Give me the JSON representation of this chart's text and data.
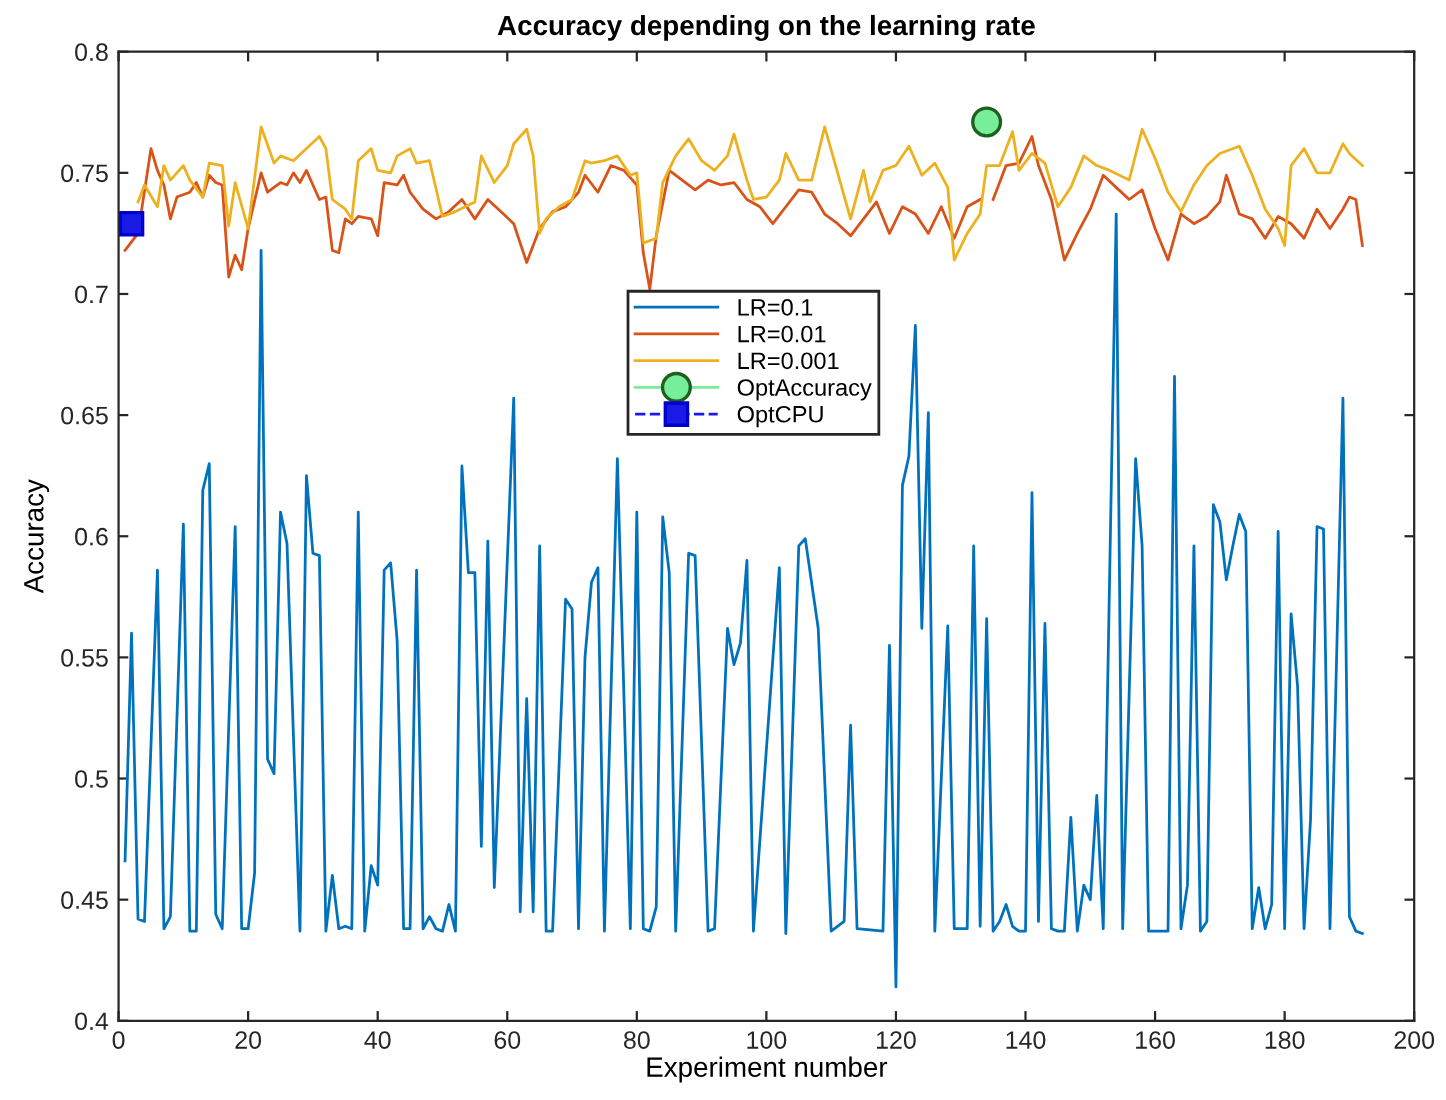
{
  "chart_data": {
    "type": "line",
    "title": "Accuracy depending on the learning rate",
    "xlabel": "Experiment number",
    "ylabel": "Accuracy",
    "xlim": [
      0,
      200
    ],
    "xticks": [
      0,
      20,
      40,
      60,
      80,
      100,
      120,
      140,
      160,
      180,
      200
    ],
    "ylim": [
      0.4,
      0.8
    ],
    "yticks": [
      0.4,
      0.45,
      0.5,
      0.55,
      0.6,
      0.65,
      0.7,
      0.75,
      0.8
    ],
    "grid": false,
    "legend": "top",
    "marker": "none",
    "line_style": "solid",
    "series": [
      {
        "name": "LR=0.1",
        "color": "#0072bd",
        "x": [
          1,
          2,
          3,
          4,
          6,
          7,
          8,
          10,
          11,
          12,
          13,
          14,
          15,
          16,
          18,
          19,
          20,
          21,
          22,
          23,
          24,
          25,
          26,
          28,
          29,
          30,
          31,
          32,
          33,
          34,
          35,
          36,
          37,
          38,
          39,
          40,
          41,
          42,
          43,
          44,
          45,
          46,
          47,
          48,
          49,
          50,
          51,
          52,
          53,
          54,
          55,
          56,
          57,
          58,
          61,
          62,
          63,
          64,
          65,
          66,
          67,
          69,
          70,
          71,
          72,
          73,
          74,
          75,
          77,
          79,
          80,
          81,
          82,
          83,
          84,
          85,
          86,
          88,
          89,
          91,
          92,
          94,
          95,
          96,
          97,
          98,
          102,
          103,
          105,
          106,
          108,
          110,
          112,
          113,
          114,
          118,
          119,
          120,
          121,
          122,
          123,
          124,
          125,
          126,
          128,
          129,
          130,
          131,
          132,
          133,
          134,
          135,
          136,
          137,
          138,
          139,
          140,
          141,
          142,
          143,
          144,
          145,
          146,
          147,
          148,
          149,
          150,
          151,
          152,
          154,
          155,
          157,
          158,
          159,
          162,
          163,
          164,
          165,
          166,
          167,
          168,
          169,
          170,
          171,
          172,
          173,
          174,
          175,
          176,
          177,
          178,
          179,
          180,
          181,
          182,
          183,
          184,
          185,
          186,
          187,
          189,
          190,
          191,
          192
        ],
        "values": [
          0.466,
          0.56,
          0.442,
          0.441,
          0.586,
          0.438,
          0.443,
          0.605,
          0.437,
          0.437,
          0.619,
          0.63,
          0.444,
          0.438,
          0.604,
          0.438,
          0.438,
          0.461,
          0.718,
          0.508,
          0.502,
          0.61,
          0.597,
          0.437,
          0.625,
          0.593,
          0.592,
          0.437,
          0.46,
          0.438,
          0.439,
          0.438,
          0.61,
          0.437,
          0.464,
          0.456,
          0.586,
          0.589,
          0.557,
          0.438,
          0.438,
          0.586,
          0.438,
          0.443,
          0.438,
          0.437,
          0.448,
          0.437,
          0.629,
          0.585,
          0.585,
          0.472,
          0.598,
          0.455,
          0.657,
          0.445,
          0.533,
          0.445,
          0.596,
          0.437,
          0.437,
          0.574,
          0.57,
          0.438,
          0.55,
          0.581,
          0.587,
          0.437,
          0.632,
          0.438,
          0.61,
          0.438,
          0.437,
          0.447,
          0.608,
          0.585,
          0.437,
          0.593,
          0.592,
          0.437,
          0.438,
          0.562,
          0.547,
          0.556,
          0.59,
          0.437,
          0.587,
          0.436,
          0.596,
          0.599,
          0.562,
          0.437,
          0.441,
          0.522,
          0.438,
          0.437,
          0.555,
          0.414,
          0.621,
          0.633,
          0.687,
          0.562,
          0.651,
          0.437,
          0.563,
          0.438,
          0.438,
          0.438,
          0.596,
          0.439,
          0.566,
          0.437,
          0.441,
          0.448,
          0.439,
          0.437,
          0.437,
          0.618,
          0.441,
          0.564,
          0.438,
          0.437,
          0.437,
          0.484,
          0.437,
          0.456,
          0.45,
          0.493,
          0.438,
          0.733,
          0.438,
          0.632,
          0.596,
          0.437,
          0.437,
          0.666,
          0.438,
          0.456,
          0.596,
          0.437,
          0.441,
          0.613,
          0.606,
          0.582,
          0.596,
          0.609,
          0.602,
          0.438,
          0.455,
          0.438,
          0.448,
          0.602,
          0.438,
          0.568,
          0.538,
          0.438,
          0.483,
          0.604,
          0.603,
          0.438,
          0.657,
          0.443,
          0.437,
          0.436
        ]
      },
      {
        "name": "LR=0.01",
        "color": "#d95319",
        "x": [
          1,
          3,
          5,
          6,
          7,
          8,
          9,
          11,
          12,
          13,
          14,
          15,
          16,
          17,
          18,
          19,
          20,
          22,
          23,
          25,
          26,
          27,
          28,
          29,
          30,
          31,
          32,
          33,
          34,
          35,
          36,
          37,
          39,
          40,
          41,
          43,
          44,
          45,
          47,
          49,
          51,
          53,
          55,
          57,
          59,
          61,
          63,
          65,
          67,
          69,
          71,
          72,
          74,
          76,
          78,
          80,
          81,
          82,
          83,
          85,
          87,
          89,
          91,
          93,
          95,
          97,
          99,
          101,
          103,
          105,
          107,
          109,
          111,
          113,
          115,
          117,
          119,
          121,
          123,
          125,
          127,
          129,
          131,
          133,
          134,
          135,
          137,
          139,
          141,
          142,
          144,
          146,
          148,
          150,
          152,
          154,
          156,
          158,
          160,
          162,
          164,
          166,
          168,
          170,
          171,
          173,
          175,
          177,
          179,
          181,
          183,
          185,
          187,
          189,
          190,
          191,
          192
        ],
        "values": [
          0.718,
          0.725,
          0.76,
          0.751,
          0.745,
          0.731,
          0.74,
          0.742,
          0.746,
          0.74,
          0.749,
          0.746,
          0.745,
          0.707,
          0.716,
          0.71,
          0.727,
          0.75,
          0.742,
          0.746,
          0.745,
          0.75,
          0.746,
          0.751,
          0.745,
          0.739,
          0.74,
          0.718,
          0.717,
          0.731,
          0.729,
          0.732,
          0.731,
          0.724,
          0.746,
          0.745,
          0.749,
          0.742,
          0.735,
          0.731,
          0.734,
          0.739,
          0.731,
          0.739,
          0.734,
          0.729,
          0.713,
          0.727,
          0.734,
          0.736,
          0.742,
          0.749,
          0.742,
          0.753,
          0.751,
          0.745,
          0.717,
          0.702,
          0.724,
          0.751,
          0.747,
          0.743,
          0.747,
          0.745,
          0.746,
          0.739,
          0.736,
          0.729,
          0.736,
          0.743,
          0.742,
          0.733,
          0.729,
          0.724,
          0.731,
          0.738,
          0.725,
          0.736,
          0.733,
          0.725,
          0.736,
          0.723,
          0.736,
          0.739,
          null,
          0.739,
          0.753,
          0.754,
          0.765,
          0.753,
          0.739,
          0.714,
          0.725,
          0.735,
          0.749,
          0.744,
          0.739,
          0.743,
          0.727,
          0.714,
          0.733,
          0.729,
          0.732,
          0.738,
          0.749,
          0.733,
          0.731,
          0.723,
          0.732,
          0.729,
          0.723,
          0.735,
          0.727,
          0.735,
          0.74,
          0.739,
          0.72
        ]
      },
      {
        "name": "LR=0.001",
        "color": "#edb120",
        "x": [
          3,
          4,
          6,
          7,
          8,
          10,
          11,
          13,
          14,
          16,
          17,
          18,
          20,
          22,
          24,
          25,
          27,
          29,
          31,
          32,
          33,
          35,
          36,
          37,
          39,
          40,
          42,
          43,
          45,
          46,
          48,
          50,
          52,
          55,
          56,
          58,
          60,
          61,
          63,
          64,
          65,
          66,
          68,
          70,
          72,
          73,
          75,
          77,
          79,
          80,
          81,
          83,
          84,
          86,
          88,
          90,
          92,
          94,
          95,
          97,
          98,
          100,
          102,
          103,
          105,
          107,
          109,
          111,
          113,
          115,
          116,
          118,
          120,
          122,
          124,
          126,
          128,
          129,
          131,
          133,
          134,
          136,
          138,
          139,
          141,
          143,
          145,
          147,
          149,
          151,
          153,
          156,
          158,
          160,
          162,
          164,
          166,
          168,
          170,
          173,
          175,
          177,
          179,
          180,
          181,
          183,
          185,
          187,
          189,
          190,
          192
        ],
        "values": [
          0.738,
          0.745,
          0.736,
          0.753,
          0.747,
          0.753,
          0.747,
          0.74,
          0.754,
          0.753,
          0.728,
          0.746,
          0.727,
          0.769,
          0.754,
          0.757,
          0.755,
          0.76,
          0.765,
          0.76,
          0.739,
          0.735,
          0.731,
          0.755,
          0.76,
          0.751,
          0.75,
          0.757,
          0.76,
          0.754,
          0.755,
          0.732,
          0.734,
          0.738,
          0.757,
          0.746,
          0.753,
          0.762,
          0.768,
          0.757,
          0.725,
          0.731,
          0.736,
          0.739,
          0.755,
          0.754,
          0.755,
          0.757,
          0.749,
          0.75,
          0.721,
          0.723,
          0.746,
          0.757,
          0.764,
          0.755,
          0.751,
          0.757,
          0.766,
          0.747,
          0.739,
          0.74,
          0.747,
          0.758,
          0.747,
          0.747,
          0.769,
          0.75,
          0.731,
          0.751,
          0.738,
          0.751,
          0.753,
          0.761,
          0.749,
          0.754,
          0.744,
          0.714,
          0.725,
          0.733,
          0.753,
          0.753,
          0.767,
          0.751,
          0.758,
          0.754,
          0.736,
          0.744,
          0.757,
          0.753,
          0.751,
          0.747,
          0.768,
          0.756,
          0.742,
          0.734,
          0.745,
          0.753,
          0.758,
          0.761,
          0.749,
          0.735,
          0.727,
          0.72,
          0.753,
          0.76,
          0.75,
          0.75,
          0.762,
          0.758,
          0.753
        ]
      },
      {
        "name": "OptAccuracy",
        "color": "#77ee99",
        "marker": "circle",
        "line_style": "solid",
        "x": [
          134
        ],
        "values": [
          0.771
        ]
      },
      {
        "name": "OptCPU",
        "color": "#1a1ae6",
        "marker": "square",
        "line_style": "dashed",
        "x": [
          2
        ],
        "values": [
          0.729
        ]
      }
    ]
  }
}
